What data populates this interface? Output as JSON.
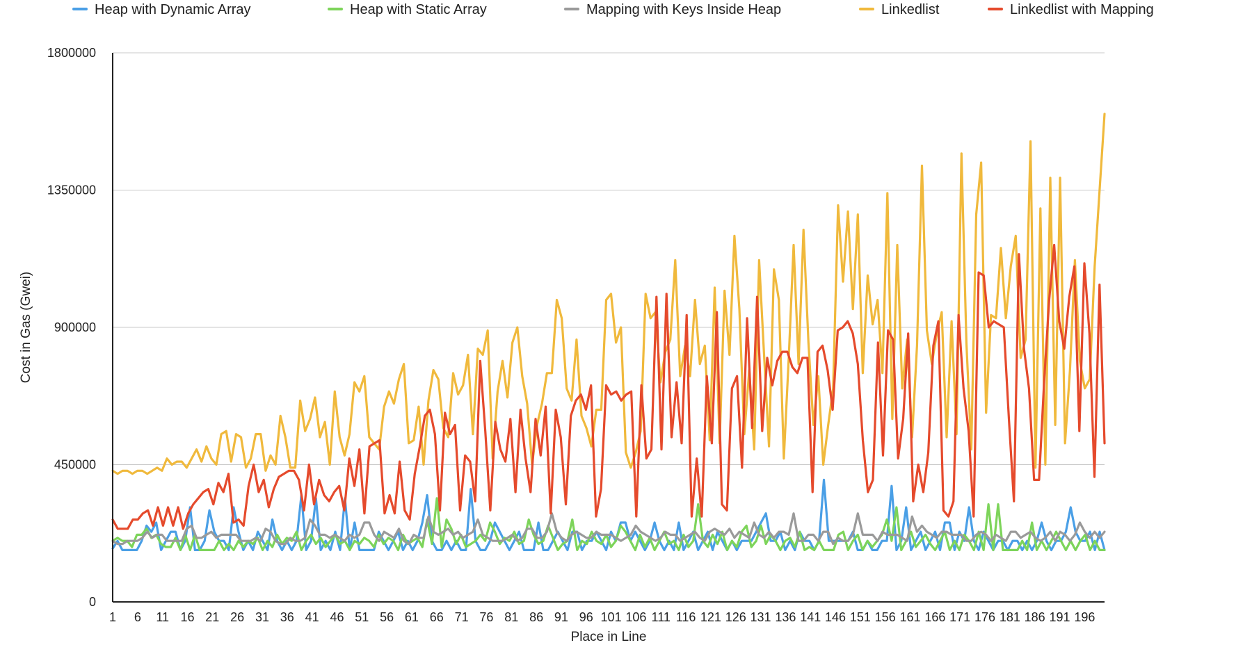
{
  "chart_data": {
    "type": "line",
    "xlabel": "Place in Line",
    "ylabel": "Cost in Gas (Gwei)",
    "ylim": [
      0,
      1800000
    ],
    "yticks": [
      "0",
      "450000",
      "900000",
      "1350000",
      "1800000"
    ],
    "xticks": [
      "1",
      "6",
      "11",
      "16",
      "21",
      "26",
      "31",
      "36",
      "41",
      "46",
      "51",
      "56",
      "61",
      "66",
      "71",
      "76",
      "81",
      "86",
      "91",
      "96",
      "101",
      "106",
      "111",
      "116",
      "121",
      "126",
      "131",
      "136",
      "141",
      "146",
      "151",
      "156",
      "161",
      "166",
      "171",
      "176",
      "181",
      "186",
      "191",
      "196"
    ],
    "grid": true,
    "legend": "top",
    "x_start": 1,
    "x_end": 200,
    "series": [
      {
        "name": "Heap with Dynamic Array",
        "color": "#4a9fe6",
        "values": [
          175000,
          200000,
          170000,
          170000,
          170000,
          170000,
          200000,
          250000,
          230000,
          260000,
          170000,
          200000,
          230000,
          230000,
          170000,
          200000,
          310000,
          170000,
          170000,
          200000,
          300000,
          230000,
          200000,
          200000,
          170000,
          310000,
          230000,
          170000,
          200000,
          170000,
          230000,
          200000,
          170000,
          270000,
          200000,
          170000,
          200000,
          170000,
          200000,
          350000,
          170000,
          200000,
          340000,
          170000,
          200000,
          170000,
          230000,
          170000,
          340000,
          170000,
          260000,
          170000,
          170000,
          170000,
          170000,
          230000,
          200000,
          170000,
          200000,
          230000,
          170000,
          200000,
          170000,
          200000,
          260000,
          350000,
          200000,
          170000,
          170000,
          200000,
          170000,
          200000,
          170000,
          170000,
          370000,
          200000,
          170000,
          170000,
          200000,
          260000,
          230000,
          200000,
          170000,
          200000,
          230000,
          170000,
          170000,
          170000,
          260000,
          170000,
          170000,
          200000,
          230000,
          200000,
          170000,
          230000,
          230000,
          170000,
          200000,
          200000,
          230000,
          200000,
          170000,
          230000,
          200000,
          260000,
          260000,
          200000,
          230000,
          200000,
          170000,
          200000,
          260000,
          200000,
          170000,
          200000,
          170000,
          260000,
          170000,
          200000,
          230000,
          170000,
          200000,
          230000,
          170000,
          230000,
          200000,
          170000,
          200000,
          170000,
          200000,
          200000,
          200000,
          230000,
          260000,
          290000,
          200000,
          200000,
          230000,
          170000,
          200000,
          170000,
          230000,
          200000,
          200000,
          170000,
          200000,
          400000,
          200000,
          200000,
          200000,
          200000,
          200000,
          230000,
          170000,
          170000,
          200000,
          170000,
          170000,
          200000,
          200000,
          380000,
          170000,
          200000,
          310000,
          170000,
          200000,
          230000,
          170000,
          200000,
          230000,
          170000,
          260000,
          260000,
          170000,
          230000,
          200000,
          310000,
          200000,
          170000,
          230000,
          200000,
          170000,
          200000,
          200000,
          170000,
          200000,
          200000,
          170000,
          200000,
          170000,
          200000,
          260000,
          200000,
          170000,
          200000,
          200000,
          230000,
          310000,
          230000,
          200000,
          200000,
          230000,
          170000,
          230000,
          170000
        ]
      },
      {
        "name": "Heap with Static Array",
        "color": "#7dd45a",
        "values": [
          200000,
          210000,
          200000,
          200000,
          180000,
          220000,
          220000,
          240000,
          210000,
          220000,
          190000,
          180000,
          180000,
          210000,
          170000,
          220000,
          170000,
          220000,
          170000,
          170000,
          170000,
          170000,
          200000,
          170000,
          190000,
          170000,
          200000,
          180000,
          200000,
          190000,
          210000,
          170000,
          200000,
          180000,
          220000,
          190000,
          210000,
          200000,
          230000,
          170000,
          200000,
          220000,
          190000,
          210000,
          180000,
          200000,
          220000,
          190000,
          200000,
          170000,
          200000,
          190000,
          210000,
          200000,
          180000,
          220000,
          190000,
          210000,
          200000,
          170000,
          220000,
          190000,
          200000,
          210000,
          180000,
          270000,
          190000,
          340000,
          180000,
          270000,
          240000,
          190000,
          220000,
          180000,
          190000,
          200000,
          220000,
          200000,
          260000,
          230000,
          190000,
          210000,
          200000,
          230000,
          190000,
          200000,
          270000,
          220000,
          190000,
          200000,
          250000,
          210000,
          170000,
          190000,
          200000,
          270000,
          170000,
          200000,
          190000,
          230000,
          200000,
          190000,
          220000,
          180000,
          200000,
          250000,
          230000,
          200000,
          170000,
          220000,
          180000,
          210000,
          170000,
          200000,
          230000,
          190000,
          200000,
          170000,
          220000,
          180000,
          200000,
          320000,
          200000,
          180000,
          220000,
          190000,
          230000,
          170000,
          200000,
          180000,
          230000,
          250000,
          180000,
          200000,
          250000,
          190000,
          220000,
          200000,
          170000,
          200000,
          210000,
          180000,
          230000,
          170000,
          180000,
          170000,
          200000,
          170000,
          170000,
          170000,
          220000,
          230000,
          170000,
          200000,
          220000,
          170000,
          200000,
          180000,
          200000,
          220000,
          270000,
          200000,
          310000,
          170000,
          200000,
          230000,
          180000,
          200000,
          220000,
          190000,
          170000,
          200000,
          230000,
          170000,
          200000,
          170000,
          220000,
          200000,
          170000,
          230000,
          170000,
          320000,
          170000,
          320000,
          170000,
          170000,
          170000,
          170000,
          200000,
          170000,
          260000,
          170000,
          200000,
          170000,
          200000,
          230000,
          200000,
          170000,
          200000,
          170000,
          200000,
          220000,
          170000,
          200000,
          170000,
          170000
        ]
      },
      {
        "name": "Mapping with Keys Inside Heap",
        "color": "#9a9a9a",
        "values": [
          200000,
          190000,
          190000,
          200000,
          200000,
          200000,
          210000,
          230000,
          210000,
          220000,
          220000,
          200000,
          200000,
          200000,
          200000,
          240000,
          250000,
          210000,
          210000,
          220000,
          230000,
          210000,
          220000,
          220000,
          220000,
          220000,
          200000,
          200000,
          200000,
          210000,
          200000,
          240000,
          230000,
          200000,
          190000,
          190000,
          210000,
          200000,
          200000,
          210000,
          270000,
          250000,
          220000,
          220000,
          210000,
          220000,
          210000,
          200000,
          220000,
          210000,
          220000,
          260000,
          260000,
          220000,
          200000,
          230000,
          220000,
          210000,
          240000,
          200000,
          190000,
          220000,
          210000,
          210000,
          280000,
          230000,
          220000,
          230000,
          240000,
          220000,
          230000,
          210000,
          220000,
          230000,
          270000,
          220000,
          210000,
          200000,
          200000,
          200000,
          210000,
          220000,
          200000,
          210000,
          240000,
          240000,
          210000,
          210000,
          230000,
          290000,
          230000,
          210000,
          200000,
          220000,
          230000,
          220000,
          210000,
          210000,
          230000,
          220000,
          220000,
          220000,
          210000,
          200000,
          210000,
          220000,
          250000,
          230000,
          220000,
          210000,
          200000,
          210000,
          230000,
          220000,
          220000,
          200000,
          210000,
          220000,
          230000,
          210000,
          200000,
          230000,
          240000,
          230000,
          220000,
          240000,
          210000,
          230000,
          220000,
          210000,
          260000,
          220000,
          210000,
          230000,
          210000,
          230000,
          230000,
          220000,
          290000,
          200000,
          200000,
          220000,
          220000,
          200000,
          230000,
          230000,
          190000,
          210000,
          200000,
          200000,
          220000,
          290000,
          220000,
          220000,
          220000,
          200000,
          230000,
          220000,
          220000,
          220000,
          210000,
          200000,
          280000,
          230000,
          250000,
          230000,
          220000,
          210000,
          230000,
          230000,
          220000,
          220000,
          220000,
          200000,
          200000,
          220000,
          230000,
          220000,
          200000,
          220000,
          210000,
          200000,
          230000,
          230000,
          210000,
          220000,
          230000,
          210000,
          200000,
          210000,
          230000,
          200000,
          230000,
          220000,
          200000,
          220000,
          260000,
          230000,
          210000,
          230000,
          210000,
          230000
        ]
      },
      {
        "name": "Linkedlist",
        "color": "#f0b93c",
        "values": [
          430000,
          420000,
          430000,
          430000,
          420000,
          430000,
          430000,
          420000,
          430000,
          440000,
          430000,
          470000,
          450000,
          460000,
          460000,
          440000,
          470000,
          500000,
          460000,
          510000,
          470000,
          450000,
          550000,
          560000,
          460000,
          550000,
          540000,
          440000,
          470000,
          550000,
          550000,
          430000,
          480000,
          450000,
          610000,
          540000,
          440000,
          440000,
          660000,
          560000,
          600000,
          670000,
          540000,
          590000,
          450000,
          690000,
          540000,
          480000,
          550000,
          720000,
          690000,
          740000,
          540000,
          520000,
          500000,
          640000,
          690000,
          650000,
          730000,
          780000,
          520000,
          530000,
          640000,
          450000,
          660000,
          760000,
          730000,
          570000,
          540000,
          750000,
          680000,
          710000,
          810000,
          550000,
          830000,
          810000,
          890000,
          470000,
          690000,
          790000,
          670000,
          850000,
          900000,
          740000,
          650000,
          450000,
          580000,
          650000,
          750000,
          750000,
          990000,
          930000,
          700000,
          660000,
          860000,
          610000,
          570000,
          510000,
          630000,
          630000,
          990000,
          1010000,
          850000,
          900000,
          490000,
          440000,
          490000,
          560000,
          1010000,
          930000,
          950000,
          720000,
          820000,
          860000,
          1120000,
          740000,
          840000,
          740000,
          990000,
          780000,
          840000,
          530000,
          1030000,
          520000,
          1020000,
          810000,
          1200000,
          960000,
          550000,
          760000,
          500000,
          1120000,
          810000,
          510000,
          1090000,
          990000,
          470000,
          800000,
          1170000,
          780000,
          1220000,
          850000,
          580000,
          740000,
          450000,
          580000,
          700000,
          1300000,
          1050000,
          1280000,
          960000,
          1270000,
          750000,
          1070000,
          910000,
          990000,
          750000,
          1340000,
          600000,
          1170000,
          700000,
          860000,
          540000,
          840000,
          1430000,
          890000,
          780000,
          880000,
          950000,
          540000,
          920000,
          550000,
          1470000,
          850000,
          500000,
          1270000,
          1440000,
          620000,
          940000,
          930000,
          1160000,
          930000,
          1100000,
          1200000,
          800000,
          860000,
          1510000,
          440000,
          1290000,
          450000,
          1390000,
          580000,
          1390000,
          520000,
          760000,
          1120000,
          790000,
          700000,
          730000,
          1100000,
          1350000,
          1600000
        ]
      },
      {
        "name": "Linkedlist with Mapping",
        "color": "#e54a2c",
        "values": [
          270000,
          240000,
          240000,
          240000,
          270000,
          270000,
          290000,
          300000,
          250000,
          310000,
          250000,
          310000,
          250000,
          310000,
          240000,
          290000,
          320000,
          340000,
          360000,
          370000,
          320000,
          390000,
          360000,
          420000,
          260000,
          270000,
          250000,
          380000,
          450000,
          360000,
          400000,
          310000,
          370000,
          410000,
          420000,
          430000,
          430000,
          400000,
          300000,
          450000,
          320000,
          400000,
          350000,
          330000,
          360000,
          380000,
          300000,
          470000,
          380000,
          500000,
          290000,
          510000,
          520000,
          530000,
          290000,
          350000,
          290000,
          460000,
          300000,
          270000,
          420000,
          510000,
          610000,
          630000,
          550000,
          300000,
          620000,
          550000,
          580000,
          300000,
          480000,
          460000,
          330000,
          790000,
          560000,
          300000,
          590000,
          500000,
          460000,
          600000,
          360000,
          630000,
          470000,
          360000,
          600000,
          480000,
          640000,
          290000,
          630000,
          540000,
          320000,
          610000,
          660000,
          680000,
          630000,
          710000,
          280000,
          370000,
          710000,
          680000,
          690000,
          660000,
          680000,
          690000,
          280000,
          710000,
          470000,
          500000,
          1000000,
          500000,
          1010000,
          540000,
          720000,
          520000,
          940000,
          280000,
          470000,
          280000,
          740000,
          520000,
          950000,
          320000,
          300000,
          700000,
          740000,
          440000,
          930000,
          570000,
          1000000,
          560000,
          800000,
          710000,
          790000,
          820000,
          820000,
          770000,
          750000,
          800000,
          800000,
          360000,
          820000,
          840000,
          760000,
          630000,
          890000,
          900000,
          920000,
          880000,
          780000,
          530000,
          360000,
          400000,
          850000,
          480000,
          890000,
          860000,
          470000,
          600000,
          880000,
          330000,
          450000,
          360000,
          490000,
          840000,
          920000,
          300000,
          280000,
          330000,
          940000,
          700000,
          560000,
          280000,
          1080000,
          1070000,
          900000,
          920000,
          910000,
          900000,
          600000,
          330000,
          1140000,
          830000,
          700000,
          400000,
          400000,
          720000,
          990000,
          1170000,
          920000,
          830000,
          1000000,
          1100000,
          560000,
          1110000,
          880000,
          410000,
          1040000,
          520000
        ]
      }
    ]
  }
}
